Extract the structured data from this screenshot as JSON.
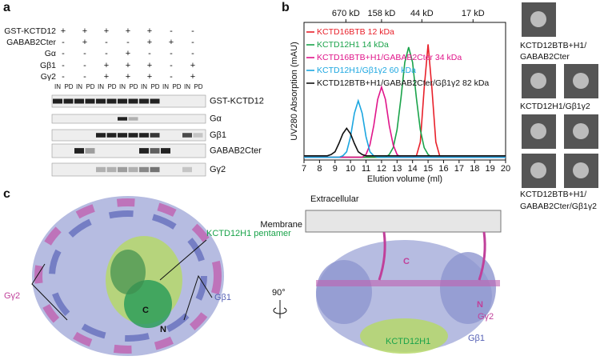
{
  "panel_labels": [
    "a",
    "b",
    "c"
  ],
  "blot": {
    "conditions": [
      {
        "label": "GST-KCTD12",
        "signs": [
          "+",
          "+",
          "+",
          "+",
          "+",
          "-",
          "-"
        ]
      },
      {
        "label": "GABAB2Cter",
        "signs": [
          "-",
          "+",
          "-",
          "-",
          "+",
          "+",
          "-"
        ]
      },
      {
        "label": "Gα",
        "signs": [
          "-",
          "-",
          "-",
          "+",
          "-",
          "-",
          "-"
        ]
      },
      {
        "label": "Gβ1",
        "signs": [
          "-",
          "-",
          "+",
          "+",
          "+",
          "-",
          "+"
        ]
      },
      {
        "label": "Gγ2",
        "signs": [
          "-",
          "-",
          "+",
          "+",
          "+",
          "-",
          "+"
        ]
      }
    ],
    "lane_labels": [
      "IN",
      "PD"
    ],
    "rows": [
      "GST-KCTD12",
      "Gα",
      "Gβ1",
      "GABAB2Cter",
      "Gγ2"
    ]
  },
  "chart_data": {
    "type": "line",
    "xlabel": "Elution volume (ml)",
    "ylabel": "UV280 Absorption (mAU)",
    "x": [
      7,
      7.25,
      7.5,
      7.75,
      8,
      8.25,
      8.5,
      8.75,
      9,
      9.25,
      9.5,
      9.75,
      10,
      10.25,
      10.5,
      10.75,
      11,
      11.25,
      11.5,
      11.75,
      12,
      12.25,
      12.5,
      12.75,
      13,
      13.25,
      13.5,
      13.75,
      14,
      14.25,
      14.5,
      14.75,
      15,
      15.25,
      15.5,
      15.75,
      16,
      16.25,
      16.5,
      16.75,
      17,
      17.25,
      17.5,
      17.75,
      18,
      18.25,
      18.5,
      18.75,
      19,
      19.25,
      19.5,
      19.75,
      20
    ],
    "xlim": [
      7,
      20
    ],
    "xticks": [
      7,
      8,
      9,
      10,
      11,
      12,
      13,
      14,
      15,
      16,
      17,
      18,
      19,
      20
    ],
    "x2ticks": [
      {
        "value": 9.7,
        "label": "670 kD"
      },
      {
        "value": 12.0,
        "label": "158 kD"
      },
      {
        "value": 14.6,
        "label": "44 kD"
      },
      {
        "value": 17.9,
        "label": "17 kD"
      }
    ],
    "ylim": [
      0,
      100
    ],
    "series": [
      {
        "name": "KCTD16BTB 12 kDa",
        "color": "#e8202a",
        "values": [
          2,
          2,
          2,
          2,
          2,
          2,
          2,
          2,
          2,
          2,
          2,
          2,
          2,
          2,
          2,
          2,
          2,
          2,
          2,
          2,
          2,
          2,
          2,
          2,
          2,
          2,
          2,
          2,
          2,
          3,
          13,
          52,
          84,
          52,
          13,
          3,
          2,
          2,
          2,
          2,
          2,
          2,
          2,
          2,
          2,
          2,
          2,
          2,
          2,
          2,
          2,
          2,
          2
        ]
      },
      {
        "name": "KCTD12H1 14 kDa",
        "color": "#1aa34a",
        "values": [
          2,
          2,
          2,
          2,
          2,
          2,
          2,
          2,
          2,
          2,
          2,
          2,
          2,
          2,
          2,
          2,
          2,
          2,
          2,
          2,
          2,
          2,
          4,
          9,
          22,
          45,
          71,
          82,
          71,
          45,
          22,
          9,
          4,
          2,
          2,
          2,
          2,
          2,
          2,
          2,
          2,
          2,
          2,
          2,
          2,
          2,
          2,
          2,
          2,
          2,
          2,
          2,
          2
        ]
      },
      {
        "name": "KCTD16BTB+H1/GABAB2Cter 34 kDa",
        "color": "#e0158a",
        "values": [
          2,
          2,
          2,
          2,
          2,
          2,
          2,
          2,
          2,
          2,
          2,
          2,
          2,
          2,
          2,
          2,
          4,
          11,
          25,
          44,
          53,
          44,
          25,
          11,
          4,
          2,
          2,
          2,
          2,
          2,
          2,
          2,
          2,
          2,
          2,
          2,
          2,
          2,
          2,
          2,
          2,
          2,
          2,
          2,
          2,
          2,
          2,
          2,
          2,
          2,
          2,
          2,
          2
        ]
      },
      {
        "name": "KCTD12H1/Gβ1γ2 60 kDa",
        "color": "#1ba6e0",
        "values": [
          2,
          2,
          2,
          2,
          2,
          2,
          2,
          2,
          2,
          2,
          3,
          6,
          17,
          34,
          43,
          34,
          17,
          6,
          3,
          2,
          2,
          2,
          2,
          2,
          2,
          2,
          2,
          2,
          2,
          2,
          2,
          2,
          2,
          2,
          2,
          2,
          2,
          2,
          2,
          2,
          2,
          2,
          2,
          2,
          2,
          2,
          2,
          2,
          2,
          2,
          2,
          2,
          2
        ]
      },
      {
        "name": "KCTD12BTB+H1/GABAB2Cter/Gβ1γ2 82 kDa",
        "color": "#111111",
        "values": [
          3,
          3,
          3,
          3,
          3,
          3,
          3,
          4,
          6,
          12,
          19,
          23,
          19,
          12,
          6,
          4,
          3,
          3,
          3,
          3,
          3,
          3,
          3,
          3,
          3,
          3,
          3,
          3,
          3,
          3,
          3,
          3,
          3,
          3,
          3,
          3,
          3,
          3,
          3,
          3,
          3,
          3,
          3,
          3,
          3,
          3,
          3,
          3,
          3,
          3,
          3,
          3,
          3
        ]
      }
    ]
  },
  "class_averages": [
    [
      "KCTD12BTB+H1/",
      "GABAB2Cter"
    ],
    [
      "KCTD12H1/Gβ1γ2"
    ],
    [
      "KCTD12BTB+H1/",
      "GABAB2Cter/Gβ1γ2"
    ]
  ],
  "structure": {
    "left": {
      "pentamer": "KCTD12H1 pentamer",
      "gamma": "Gγ2",
      "beta": "Gβ1",
      "c": "C",
      "n": "N"
    },
    "rotation": "90°",
    "right": {
      "extracellular": "Extracellular",
      "membrane": "Membrane",
      "c": "C",
      "n": "N",
      "gamma": "Gγ2",
      "beta": "Gβ1",
      "kctd": "KCTD12H1"
    }
  }
}
